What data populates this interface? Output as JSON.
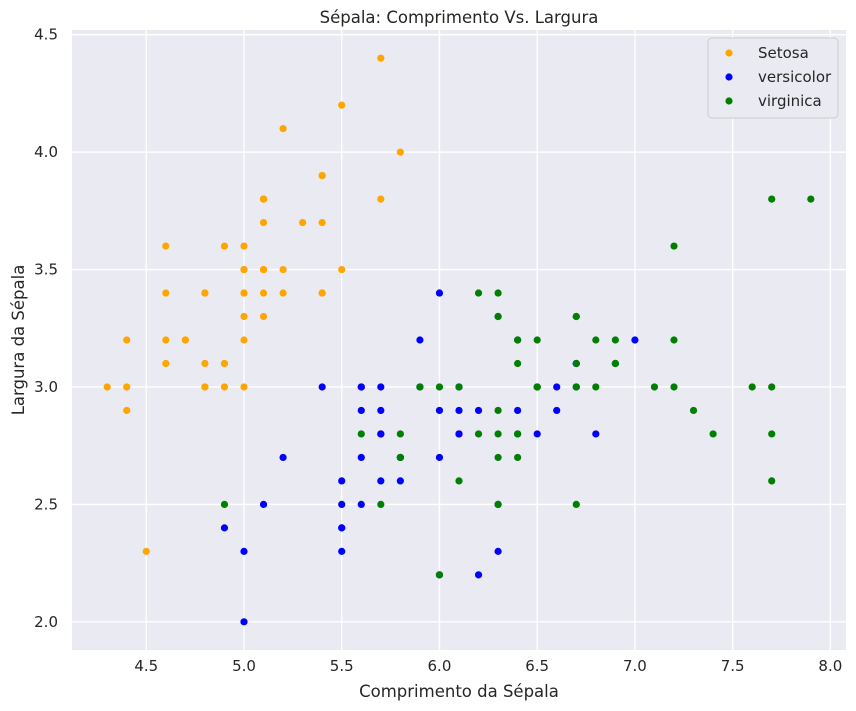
{
  "chart_data": {
    "type": "scatter",
    "title": "Sépala: Comprimento Vs. Largura",
    "xlabel": "Comprimento da Sépala",
    "ylabel": "Largura da Sépala",
    "xlim": [
      4.12,
      8.08
    ],
    "ylim": [
      1.88,
      4.52
    ],
    "xticks": [
      4.5,
      5.0,
      5.5,
      6.0,
      6.5,
      7.0,
      7.5,
      8.0
    ],
    "xtick_labels": [
      "4.5",
      "5.0",
      "5.5",
      "6.0",
      "6.5",
      "7.0",
      "7.5",
      "8.0"
    ],
    "yticks": [
      2.0,
      2.5,
      3.0,
      3.5,
      4.0,
      4.5
    ],
    "ytick_labels": [
      "2.0",
      "2.5",
      "3.0",
      "3.5",
      "4.0",
      "4.5"
    ],
    "grid": true,
    "legend_position": "top-right",
    "background_color": "#eaeaf2",
    "series": [
      {
        "name": "Setosa",
        "color": "#ffa500",
        "points": [
          [
            5.1,
            3.5
          ],
          [
            4.9,
            3.0
          ],
          [
            4.7,
            3.2
          ],
          [
            4.6,
            3.1
          ],
          [
            5.0,
            3.6
          ],
          [
            5.4,
            3.9
          ],
          [
            4.6,
            3.4
          ],
          [
            5.0,
            3.4
          ],
          [
            4.4,
            2.9
          ],
          [
            4.9,
            3.1
          ],
          [
            5.4,
            3.7
          ],
          [
            4.8,
            3.4
          ],
          [
            4.8,
            3.0
          ],
          [
            4.3,
            3.0
          ],
          [
            5.8,
            4.0
          ],
          [
            5.7,
            4.4
          ],
          [
            5.4,
            3.9
          ],
          [
            5.1,
            3.5
          ],
          [
            5.7,
            3.8
          ],
          [
            5.1,
            3.8
          ],
          [
            5.4,
            3.4
          ],
          [
            5.1,
            3.7
          ],
          [
            4.6,
            3.6
          ],
          [
            5.1,
            3.3
          ],
          [
            4.8,
            3.4
          ],
          [
            5.0,
            3.0
          ],
          [
            5.0,
            3.4
          ],
          [
            5.2,
            3.5
          ],
          [
            5.2,
            3.4
          ],
          [
            4.7,
            3.2
          ],
          [
            4.8,
            3.1
          ],
          [
            5.4,
            3.4
          ],
          [
            5.2,
            4.1
          ],
          [
            5.5,
            4.2
          ],
          [
            4.9,
            3.1
          ],
          [
            5.0,
            3.2
          ],
          [
            5.5,
            3.5
          ],
          [
            4.9,
            3.6
          ],
          [
            4.4,
            3.0
          ],
          [
            5.1,
            3.4
          ],
          [
            5.0,
            3.5
          ],
          [
            4.5,
            2.3
          ],
          [
            4.4,
            3.2
          ],
          [
            5.0,
            3.5
          ],
          [
            5.1,
            3.8
          ],
          [
            4.8,
            3.0
          ],
          [
            5.1,
            3.8
          ],
          [
            4.6,
            3.2
          ],
          [
            5.3,
            3.7
          ],
          [
            5.0,
            3.3
          ]
        ]
      },
      {
        "name": "versicolor",
        "color": "#0000ff",
        "points": [
          [
            7.0,
            3.2
          ],
          [
            6.4,
            3.2
          ],
          [
            6.9,
            3.1
          ],
          [
            5.5,
            2.3
          ],
          [
            6.5,
            2.8
          ],
          [
            5.7,
            2.8
          ],
          [
            6.3,
            3.3
          ],
          [
            4.9,
            2.4
          ],
          [
            6.6,
            2.9
          ],
          [
            5.2,
            2.7
          ],
          [
            5.0,
            2.0
          ],
          [
            5.9,
            3.0
          ],
          [
            6.0,
            2.2
          ],
          [
            6.1,
            2.9
          ],
          [
            5.6,
            2.9
          ],
          [
            6.7,
            3.1
          ],
          [
            5.6,
            3.0
          ],
          [
            5.8,
            2.7
          ],
          [
            6.2,
            2.2
          ],
          [
            5.6,
            2.5
          ],
          [
            5.9,
            3.2
          ],
          [
            6.1,
            2.8
          ],
          [
            6.3,
            2.5
          ],
          [
            6.1,
            2.8
          ],
          [
            6.4,
            2.9
          ],
          [
            6.6,
            3.0
          ],
          [
            6.8,
            2.8
          ],
          [
            6.7,
            3.0
          ],
          [
            6.0,
            2.9
          ],
          [
            5.7,
            2.6
          ],
          [
            5.5,
            2.4
          ],
          [
            5.5,
            2.4
          ],
          [
            5.8,
            2.7
          ],
          [
            6.0,
            2.7
          ],
          [
            5.4,
            3.0
          ],
          [
            6.0,
            3.4
          ],
          [
            6.7,
            3.1
          ],
          [
            6.3,
            2.3
          ],
          [
            5.6,
            3.0
          ],
          [
            5.5,
            2.5
          ],
          [
            5.5,
            2.6
          ],
          [
            6.1,
            3.0
          ],
          [
            5.8,
            2.6
          ],
          [
            5.0,
            2.3
          ],
          [
            5.6,
            2.7
          ],
          [
            5.7,
            3.0
          ],
          [
            5.7,
            2.9
          ],
          [
            6.2,
            2.9
          ],
          [
            5.1,
            2.5
          ],
          [
            5.7,
            2.8
          ]
        ]
      },
      {
        "name": "virginica",
        "color": "#008000",
        "points": [
          [
            6.3,
            3.3
          ],
          [
            5.8,
            2.7
          ],
          [
            7.1,
            3.0
          ],
          [
            6.3,
            2.9
          ],
          [
            6.5,
            3.0
          ],
          [
            7.6,
            3.0
          ],
          [
            4.9,
            2.5
          ],
          [
            7.3,
            2.9
          ],
          [
            6.7,
            2.5
          ],
          [
            7.2,
            3.6
          ],
          [
            6.5,
            3.2
          ],
          [
            6.4,
            2.7
          ],
          [
            6.8,
            3.0
          ],
          [
            5.7,
            2.5
          ],
          [
            5.8,
            2.8
          ],
          [
            6.4,
            3.2
          ],
          [
            6.5,
            3.0
          ],
          [
            7.7,
            3.8
          ],
          [
            7.7,
            2.6
          ],
          [
            6.0,
            2.2
          ],
          [
            6.9,
            3.2
          ],
          [
            5.6,
            2.8
          ],
          [
            7.7,
            2.8
          ],
          [
            6.3,
            2.7
          ],
          [
            6.7,
            3.3
          ],
          [
            7.2,
            3.2
          ],
          [
            6.2,
            2.8
          ],
          [
            6.1,
            3.0
          ],
          [
            6.4,
            2.8
          ],
          [
            7.2,
            3.0
          ],
          [
            7.4,
            2.8
          ],
          [
            7.9,
            3.8
          ],
          [
            6.4,
            2.8
          ],
          [
            6.3,
            2.8
          ],
          [
            6.1,
            2.6
          ],
          [
            7.7,
            3.0
          ],
          [
            6.3,
            3.4
          ],
          [
            6.4,
            3.1
          ],
          [
            6.0,
            3.0
          ],
          [
            6.9,
            3.1
          ],
          [
            6.7,
            3.1
          ],
          [
            6.9,
            3.1
          ],
          [
            5.8,
            2.7
          ],
          [
            6.8,
            3.2
          ],
          [
            6.7,
            3.3
          ],
          [
            6.7,
            3.0
          ],
          [
            6.3,
            2.5
          ],
          [
            6.5,
            3.0
          ],
          [
            6.2,
            3.4
          ],
          [
            5.9,
            3.0
          ]
        ]
      }
    ]
  }
}
